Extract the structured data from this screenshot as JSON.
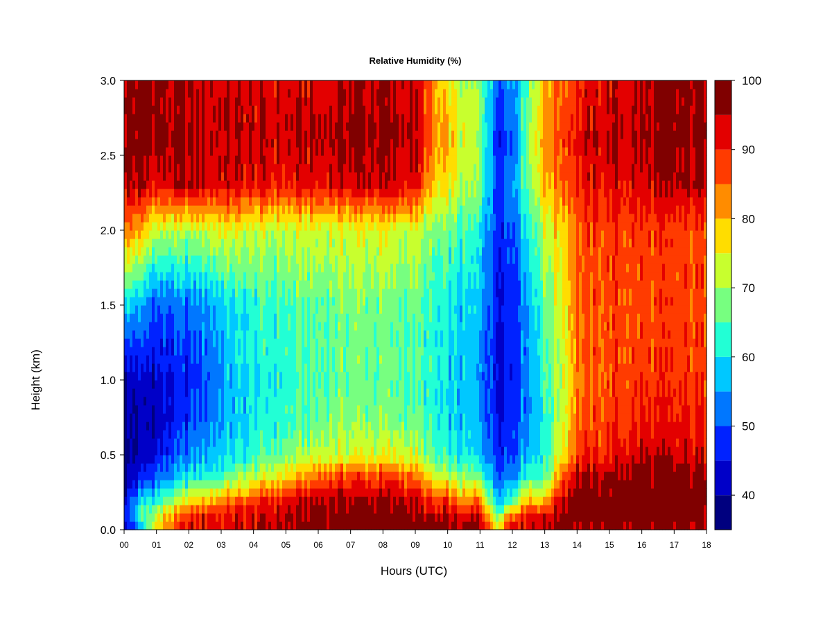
{
  "chart_data": {
    "type": "heatmap",
    "title": "Relative Humidity (%)",
    "xlabel": "Hours (UTC)",
    "ylabel": "Height (km)",
    "x_ticks": [
      "00",
      "01",
      "02",
      "03",
      "04",
      "05",
      "06",
      "07",
      "08",
      "09",
      "10",
      "11",
      "12",
      "13",
      "14",
      "15",
      "16",
      "17",
      "18"
    ],
    "y_ticks": [
      "0.0",
      "0.5",
      "1.0",
      "1.5",
      "2.0",
      "2.5",
      "3.0"
    ],
    "xlim": [
      0,
      18
    ],
    "ylim": [
      0,
      3.0
    ],
    "colorbar": {
      "ticks": [
        "40",
        "50",
        "60",
        "70",
        "80",
        "90",
        "100"
      ],
      "range": [
        35,
        100
      ],
      "levels": [
        35,
        40,
        45,
        50,
        55,
        60,
        65,
        70,
        75,
        80,
        85,
        90,
        95,
        100
      ],
      "colors": [
        "#00007f",
        "#0000c8",
        "#0022ff",
        "#0077ff",
        "#00c8ff",
        "#22ffd5",
        "#77ff80",
        "#c8ff2e",
        "#ffdd00",
        "#ff8c00",
        "#ff3b00",
        "#e30000",
        "#800000"
      ]
    },
    "height_grid_km": [
      0.0,
      0.1,
      0.2,
      0.35,
      0.5,
      0.75,
      1.0,
      1.5,
      2.0,
      2.3,
      2.6,
      3.0
    ],
    "hour_grid": [
      0,
      0.5,
      1,
      2,
      3,
      4,
      5,
      6,
      7,
      8,
      9,
      9.7,
      10,
      10.5,
      11,
      11.5,
      12,
      12.5,
      13,
      13.5,
      14,
      15,
      16,
      17,
      18
    ],
    "rh_values": [
      [
        40,
        45,
        43,
        38,
        38,
        40,
        40,
        60,
        85,
        95,
        97,
        95
      ],
      [
        50,
        65,
        58,
        45,
        40,
        40,
        42,
        55,
        80,
        95,
        98,
        96
      ],
      [
        80,
        72,
        62,
        52,
        45,
        42,
        43,
        50,
        72,
        92,
        97,
        96
      ],
      [
        92,
        90,
        75,
        60,
        52,
        48,
        46,
        52,
        70,
        95,
        95,
        94
      ],
      [
        93,
        92,
        82,
        65,
        58,
        55,
        55,
        58,
        75,
        93,
        95,
        94
      ],
      [
        94,
        93,
        87,
        72,
        63,
        60,
        60,
        62,
        72,
        92,
        94,
        93
      ],
      [
        96,
        95,
        92,
        78,
        67,
        63,
        62,
        64,
        72,
        90,
        94,
        93
      ],
      [
        98,
        97,
        95,
        85,
        72,
        67,
        65,
        66,
        73,
        92,
        95,
        93
      ],
      [
        99,
        98,
        96,
        88,
        74,
        69,
        67,
        68,
        74,
        94,
        97,
        95
      ],
      [
        99,
        98,
        96,
        88,
        74,
        68,
        66,
        67,
        74,
        94,
        96,
        95
      ],
      [
        99,
        97,
        95,
        85,
        73,
        67,
        65,
        66,
        73,
        92,
        95,
        94
      ],
      [
        99,
        92,
        85,
        72,
        63,
        60,
        60,
        60,
        65,
        75,
        80,
        78
      ],
      [
        98,
        95,
        88,
        72,
        62,
        58,
        58,
        60,
        66,
        76,
        80,
        76
      ],
      [
        98,
        90,
        80,
        68,
        60,
        57,
        57,
        58,
        63,
        70,
        72,
        70
      ],
      [
        97,
        94,
        85,
        68,
        58,
        55,
        55,
        57,
        62,
        68,
        70,
        70
      ],
      [
        80,
        65,
        58,
        52,
        48,
        46,
        45,
        46,
        48,
        50,
        48,
        52
      ],
      [
        95,
        85,
        65,
        55,
        50,
        48,
        47,
        48,
        50,
        55,
        50,
        55
      ],
      [
        95,
        92,
        80,
        65,
        58,
        55,
        55,
        57,
        62,
        68,
        70,
        68
      ],
      [
        95,
        92,
        78,
        65,
        62,
        62,
        64,
        66,
        72,
        80,
        82,
        80
      ],
      [
        99,
        97,
        95,
        85,
        75,
        72,
        72,
        74,
        78,
        85,
        88,
        86
      ],
      [
        98,
        99,
        99,
        95,
        88,
        85,
        84,
        85,
        86,
        90,
        92,
        90
      ],
      [
        98,
        99,
        99,
        97,
        90,
        88,
        87,
        87,
        88,
        92,
        95,
        93
      ],
      [
        96,
        99,
        99,
        98,
        94,
        90,
        88,
        87,
        88,
        93,
        95,
        94
      ],
      [
        94,
        99,
        99,
        97,
        93,
        90,
        88,
        87,
        87,
        95,
        96,
        96
      ],
      [
        93,
        98,
        99,
        96,
        92,
        89,
        88,
        87,
        87,
        95,
        97,
        97
      ]
    ]
  }
}
